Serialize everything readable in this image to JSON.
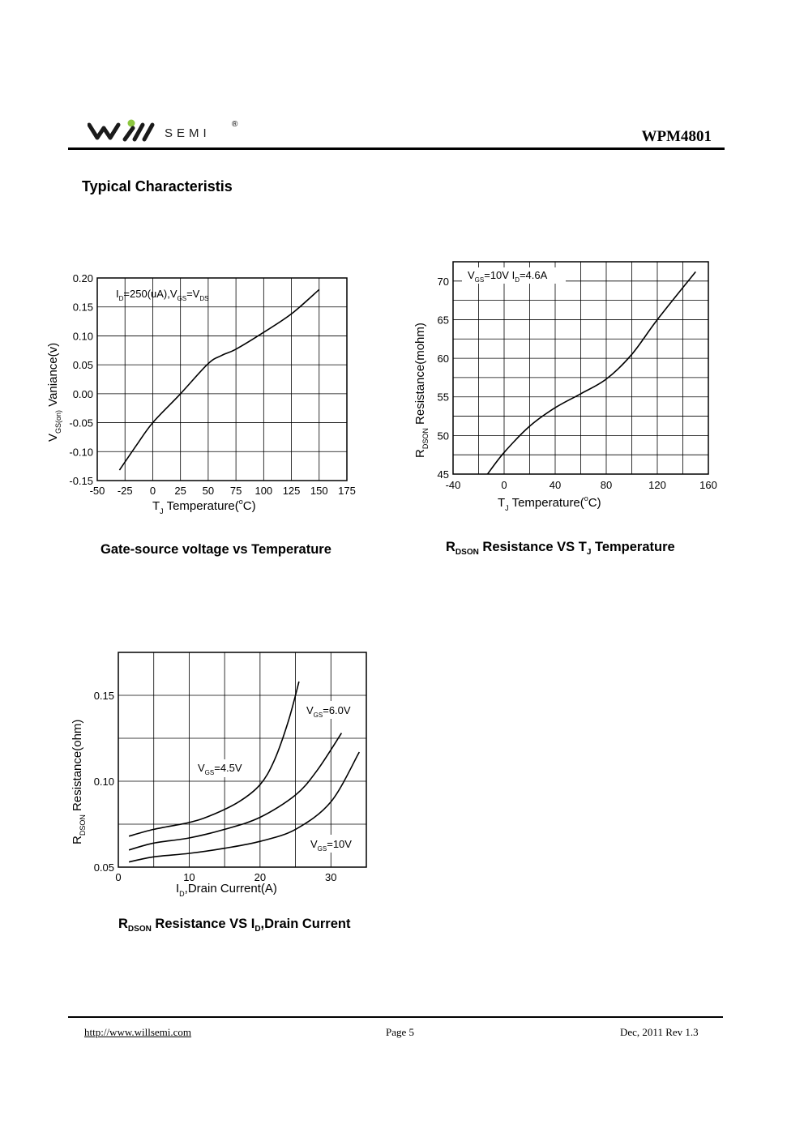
{
  "header": {
    "logo_text": "SEMI",
    "logo_mark": "®",
    "part_number": "WPM4801"
  },
  "section_title": "Typical Characteristis",
  "charts": {
    "chart1": {
      "caption": "Gate-source voltage vs Temperature",
      "ylabel_main": "V",
      "ylabel_sub": "GS(on)",
      "ylabel_rest": " Vaniance(v)",
      "xlabel_main": "T",
      "xlabel_sub": "J",
      "xlabel_rest": " Temperature(",
      "xlabel_sup": "o",
      "xlabel_end": "C)",
      "annot": {
        "p1": "I",
        "s1": "D",
        "p2": "=250(uA),V",
        "s2": "GS",
        "p3": "=V",
        "s3": "DS"
      }
    },
    "chart2": {
      "caption_main": "R",
      "caption_sub": "DSON",
      "caption_rest": " Resistance VS T",
      "caption_sub2": "J",
      "caption_end": " Temperature",
      "ylabel_main": "R",
      "ylabel_sub": "DSON",
      "ylabel_rest": " Resistance(mohm)",
      "xlabel_main": "T",
      "xlabel_sub": "J",
      "xlabel_rest": " Temperature(",
      "xlabel_sup": "o",
      "xlabel_end": "C)",
      "annot": {
        "p1": "V",
        "s1": "GS",
        "p2": "=10V I",
        "s2": "D",
        "p3": "=4.6A"
      }
    },
    "chart3": {
      "caption_main": "R",
      "caption_sub": "DSON",
      "caption_rest": " Resistance VS I",
      "caption_sub2": "D",
      "caption_end": ",Drain Current",
      "ylabel_main": "R",
      "ylabel_sub": "DSON",
      "ylabel_rest": " Resistance(ohm)",
      "xlabel_main": "I",
      "xlabel_sub": "D",
      "xlabel_rest": ",Drain Current(A)",
      "labels": {
        "v6": {
          "p": "V",
          "s": "GS",
          "r": "=6.0V"
        },
        "v45": {
          "p": "V",
          "s": "GS",
          "r": "=4.5V"
        },
        "v10": {
          "p": "V",
          "s": "GS",
          "r": "=10V"
        }
      }
    }
  },
  "chart_data": [
    {
      "type": "line",
      "title": "Gate-source voltage vs Temperature",
      "xlabel": "TJ Temperature(oC)",
      "ylabel": "VGS(on) Vaniance(v)",
      "xlim": [
        -50,
        175
      ],
      "ylim": [
        -0.15,
        0.2
      ],
      "xticks": [
        "-50",
        "-25",
        "0",
        "25",
        "50",
        "75",
        "100",
        "125",
        "150",
        "175"
      ],
      "yticks": [
        "0.20",
        "0.15",
        "0.10",
        "0.05",
        "0.00",
        "-0.05",
        "-0.10",
        "-0.15"
      ],
      "series": [
        {
          "name": "ID=250(uA),VGS=VDS",
          "x": [
            -30,
            -15,
            0,
            25,
            50,
            62,
            75,
            100,
            125,
            150
          ],
          "y": [
            -0.132,
            -0.09,
            -0.05,
            0.0,
            0.052,
            0.066,
            0.077,
            0.106,
            0.138,
            0.18
          ]
        }
      ]
    },
    {
      "type": "line",
      "title": "RDSON Resistance VS TJ Temperature",
      "xlabel": "TJ Temperature(oC)",
      "ylabel": "RDSON Resistance(mohm)",
      "xlim": [
        -40,
        160
      ],
      "ylim": [
        45,
        72.5
      ],
      "xticks": [
        "-40",
        "0",
        "40",
        "80",
        "120",
        "160"
      ],
      "yticks": [
        "45",
        "50",
        "55",
        "60",
        "65",
        "70"
      ],
      "series": [
        {
          "name": "VGS=10V ID=4.6A",
          "x": [
            -13,
            0,
            20,
            40,
            60,
            80,
            100,
            120,
            150
          ],
          "y": [
            45,
            47.8,
            51.2,
            53.6,
            55.4,
            57.3,
            60.5,
            65.0,
            71.2
          ]
        }
      ]
    },
    {
      "type": "line",
      "title": "RDSON Resistance VS ID,Drain Current",
      "xlabel": "ID,Drain Current(A)",
      "ylabel": "RDSON Resistance(ohm)",
      "xlim": [
        0,
        35
      ],
      "ylim": [
        0.05,
        0.175
      ],
      "xticks": [
        "0",
        "10",
        "20",
        "30"
      ],
      "yticks": [
        "0.05",
        "0.10",
        "0.15"
      ],
      "series": [
        {
          "name": "VGS=4.5V",
          "x": [
            1.5,
            5,
            10,
            13,
            17,
            20,
            22,
            24,
            25.5
          ],
          "y": [
            0.068,
            0.072,
            0.076,
            0.08,
            0.088,
            0.098,
            0.112,
            0.135,
            0.158
          ]
        },
        {
          "name": "VGS=6.0V",
          "x": [
            1.5,
            5,
            10,
            15,
            20,
            25,
            28,
            31.5
          ],
          "y": [
            0.06,
            0.064,
            0.067,
            0.072,
            0.079,
            0.092,
            0.106,
            0.128
          ]
        },
        {
          "name": "VGS=10V",
          "x": [
            1.5,
            5,
            10,
            15,
            20,
            25,
            30,
            34
          ],
          "y": [
            0.053,
            0.056,
            0.058,
            0.061,
            0.065,
            0.072,
            0.088,
            0.117
          ]
        }
      ]
    }
  ],
  "footer": {
    "url": "http://www.willsemi.com",
    "page": "Page 5",
    "revision": "Dec, 2011 Rev 1.3"
  }
}
